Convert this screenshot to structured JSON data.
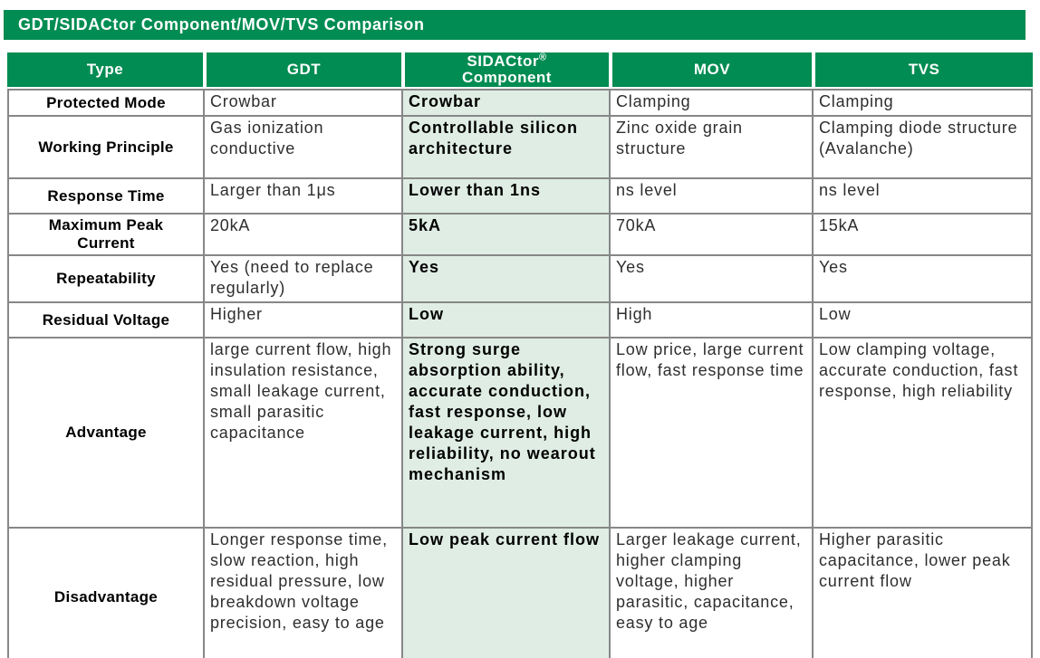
{
  "title": "GDT/SIDACtor Component/MOV/TVS Comparison",
  "colors": {
    "header_green": "#008C52",
    "highlight_light_green": "#DFEDE4",
    "border_gray": "#878787",
    "header_text": "#FFFFFF"
  },
  "table": {
    "header": {
      "type": "Type",
      "gdt": "GDT",
      "sidactor_name": "SIDACtor",
      "sidactor_reg": "®",
      "sidactor_line2": "Component",
      "mov": "MOV",
      "tvs": "TVS"
    },
    "rows": [
      {
        "label": "Protected Mode",
        "gdt": "Crowbar",
        "sidactor": "Crowbar",
        "mov": "Clamping",
        "tvs": "Clamping"
      },
      {
        "label": "Working Principle",
        "gdt": "Gas ionization conductive",
        "sidactor": "Controllable silicon architecture",
        "mov": "Zinc oxide grain structure",
        "tvs": "Clamping diode structure (Avalanche)"
      },
      {
        "label": "Response Time",
        "gdt": "Larger than 1μs",
        "sidactor": "Lower than 1ns",
        "mov": "ns level",
        "tvs": "ns level"
      },
      {
        "label": "Maximum Peak Current",
        "gdt": "20kA",
        "sidactor": "5kA",
        "mov": "70kA",
        "tvs": "15kA"
      },
      {
        "label": "Repeatability",
        "gdt": "Yes (need to replace regularly)",
        "sidactor": "Yes",
        "mov": "Yes",
        "tvs": "Yes"
      },
      {
        "label": "Residual Voltage",
        "gdt": "Higher",
        "sidactor": "Low",
        "mov": "High",
        "tvs": "Low"
      },
      {
        "label": "Advantage",
        "gdt": "large current flow, high insulation resistance, small leakage current, small parasitic capacitance",
        "sidactor": "Strong surge absorption ability, accurate conduction, fast response, low leakage current, high reliability, no wearout mechanism",
        "mov": "Low price, large current flow, fast response time",
        "tvs": "Low clamping voltage, accurate conduction, fast response, high reliability"
      },
      {
        "label": "Disadvantage",
        "gdt": "Longer response time, slow reaction, high residual pressure, low breakdown voltage precision, easy to age",
        "sidactor": "Low peak current flow",
        "mov": "Larger leakage current, higher clamping voltage, higher parasitic, capacitance, easy to age",
        "tvs": "Higher parasitic capacitance, lower peak current flow"
      }
    ]
  }
}
